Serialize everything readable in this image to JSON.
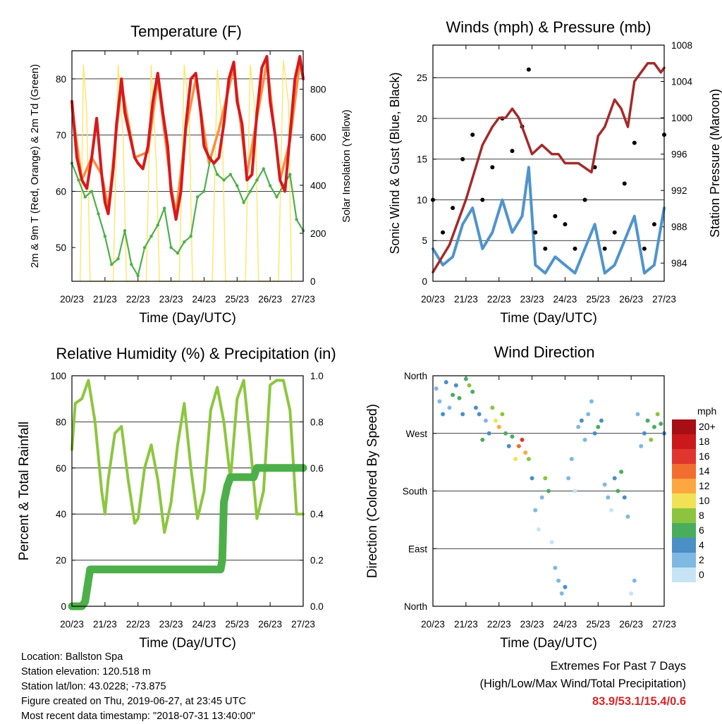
{
  "chart_data": [
    {
      "type": "line",
      "title": "Temperature (F)",
      "xlabel": "Time (Day/UTC)",
      "ylabel": "2m & 9m T (Red, Orange) & 2m Td (Green)",
      "y2label": "Solar Insolation (Yellow)",
      "xticks": [
        "20/23",
        "21/23",
        "22/23",
        "23/23",
        "24/23",
        "25/23",
        "26/23",
        "27/23"
      ],
      "xlim": [
        0,
        7
      ],
      "ylim": [
        44,
        85
      ],
      "yticks": [
        50,
        60,
        70,
        80
      ],
      "y2lim": [
        0,
        960
      ],
      "y2ticks": [
        0,
        200,
        400,
        600,
        800
      ],
      "grid": true,
      "colors": {
        "t2m": "#d7191c",
        "t9m": "#fd8d3c",
        "td2m": "#4daf4a",
        "solar": "#fee566"
      },
      "series": [
        {
          "key": "t2m",
          "x": [
            0,
            0.15,
            0.3,
            0.45,
            0.6,
            0.75,
            0.9,
            1.0,
            1.1,
            1.25,
            1.35,
            1.5,
            1.6,
            1.75,
            1.9,
            2.0,
            2.15,
            2.3,
            2.45,
            2.6,
            2.75,
            2.9,
            3.0,
            3.15,
            3.3,
            3.45,
            3.6,
            3.75,
            3.9,
            4.0,
            4.15,
            4.3,
            4.45,
            4.6,
            4.75,
            4.9,
            5.0,
            5.15,
            5.3,
            5.45,
            5.6,
            5.75,
            5.9,
            6.0,
            6.15,
            6.3,
            6.45,
            6.6,
            6.75,
            6.9,
            7.0
          ],
          "y": [
            76,
            66,
            62,
            60.5,
            66,
            73,
            63,
            58,
            56,
            64,
            72,
            80,
            74,
            70,
            66,
            65,
            64,
            68,
            76,
            81,
            74,
            68,
            60,
            55,
            60,
            72,
            80,
            81,
            74,
            68,
            66,
            65,
            66,
            72,
            80,
            83,
            76,
            72,
            62,
            63,
            74,
            82,
            84,
            76,
            70,
            62,
            60,
            70,
            80,
            84,
            80
          ]
        },
        {
          "key": "t9m",
          "x": [
            0,
            0.3,
            0.6,
            0.9,
            1.1,
            1.5,
            1.9,
            2.3,
            2.6,
            3.0,
            3.15,
            3.45,
            3.75,
            4.15,
            4.45,
            4.9,
            5.3,
            5.6,
            5.9,
            6.3,
            6.6,
            6.9,
            7.0
          ],
          "y": [
            75,
            62,
            66,
            63,
            57,
            79,
            66,
            67,
            80,
            61,
            56,
            71,
            80,
            65,
            71,
            82,
            63,
            73,
            83,
            62,
            69,
            83,
            80
          ]
        },
        {
          "key": "td2m",
          "x": [
            0,
            0.2,
            0.4,
            0.6,
            0.8,
            1.0,
            1.2,
            1.4,
            1.6,
            1.8,
            2.0,
            2.2,
            2.4,
            2.6,
            2.8,
            3.0,
            3.2,
            3.4,
            3.6,
            3.8,
            4.0,
            4.2,
            4.4,
            4.6,
            4.8,
            5.0,
            5.2,
            5.4,
            5.6,
            5.8,
            6.0,
            6.2,
            6.4,
            6.6,
            6.8,
            7.0
          ],
          "y": [
            65,
            62,
            59,
            60,
            56,
            52,
            47,
            48,
            53,
            47,
            45,
            50,
            52,
            54,
            57,
            50,
            49,
            51,
            52,
            59,
            60,
            66,
            63,
            62,
            63,
            61,
            58,
            60,
            62,
            64,
            61,
            59,
            61,
            63,
            55,
            53
          ]
        },
        {
          "key": "solar",
          "x": [
            0.25,
            0.35,
            0.45,
            0.55,
            1.25,
            1.4,
            1.55,
            1.65,
            2.25,
            2.4,
            2.55,
            2.65,
            3.25,
            3.4,
            3.55,
            3.65,
            4.25,
            4.4,
            4.55,
            4.65,
            5.25,
            5.4,
            5.55,
            5.65,
            6.25,
            6.4,
            6.55,
            6.65
          ],
          "y": [
            0,
            900,
            700,
            0,
            0,
            900,
            600,
            0,
            0,
            900,
            500,
            0,
            0,
            900,
            700,
            0,
            0,
            880,
            650,
            0,
            0,
            900,
            700,
            0,
            0,
            920,
            750,
            0
          ]
        }
      ]
    },
    {
      "type": "scatter",
      "title": "Winds (mph) & Pressure (mb)",
      "xlabel": "Time (Day/UTC)",
      "ylabel": "Sonic Wind & Gust (Blue, Black)",
      "y2label": "Station Pressure (Maroon)",
      "xticks": [
        "20/23",
        "21/23",
        "22/23",
        "23/23",
        "24/23",
        "25/23",
        "26/23",
        "27/23"
      ],
      "xlim": [
        0,
        7
      ],
      "ylim": [
        0,
        29
      ],
      "yticks": [
        0,
        5,
        10,
        15,
        20,
        25
      ],
      "y2lim": [
        982.0,
        1008.0
      ],
      "y2ticks": [
        984,
        988,
        992,
        996,
        1000,
        1004,
        1008
      ],
      "grid": true,
      "colors": {
        "wind": "#4f94cd",
        "gust": "#000000",
        "pressure": "#a52a2a"
      },
      "series": [
        {
          "key": "wind",
          "x": [
            0,
            0.3,
            0.6,
            0.9,
            1.2,
            1.5,
            1.8,
            2.1,
            2.4,
            2.7,
            2.9,
            3.1,
            3.4,
            3.7,
            4.0,
            4.3,
            4.6,
            4.9,
            5.2,
            5.5,
            5.8,
            6.1,
            6.4,
            6.7,
            7.0
          ],
          "y": [
            4,
            2,
            3,
            7,
            9,
            4,
            6,
            10,
            6,
            8,
            14,
            2,
            1,
            3,
            2,
            1,
            4,
            7,
            1,
            2,
            5,
            8,
            1,
            2,
            9
          ]
        },
        {
          "key": "gust",
          "x": [
            0,
            0.3,
            0.6,
            0.9,
            1.2,
            1.5,
            1.8,
            2.1,
            2.4,
            2.7,
            2.9,
            3.1,
            3.4,
            3.7,
            4.0,
            4.3,
            4.6,
            4.9,
            5.2,
            5.5,
            5.8,
            6.1,
            6.4,
            6.7,
            7.0
          ],
          "y": [
            10,
            6,
            9,
            15,
            18,
            10,
            14,
            20,
            16,
            19,
            26,
            6,
            4,
            8,
            7,
            4,
            10,
            14,
            4,
            6,
            12,
            17,
            4,
            7,
            18
          ]
        },
        {
          "key": "pressure",
          "x": [
            0,
            0.5,
            1.0,
            1.5,
            1.8,
            2.0,
            2.2,
            2.4,
            2.6,
            2.9,
            3.0,
            3.3,
            3.6,
            3.8,
            4.0,
            4.4,
            4.8,
            5.0,
            5.2,
            5.5,
            5.7,
            5.9,
            6.1,
            6.3,
            6.5,
            6.7,
            6.9,
            7.0
          ],
          "y": [
            983,
            986,
            991,
            997,
            999,
            1000,
            1000,
            1001,
            1000,
            997,
            996,
            997,
            996,
            996,
            995,
            995,
            994,
            998,
            999,
            1002,
            1001,
            999,
            1004,
            1005,
            1006,
            1006,
            1005,
            1005.5
          ]
        }
      ]
    },
    {
      "type": "line",
      "title": "Relative Humidity (%) & Precipitation (in)",
      "xlabel": "Time (Day/UTC)",
      "ylabel": "Percent & Total Rainfall",
      "xticks": [
        "20/23",
        "21/23",
        "22/23",
        "23/23",
        "24/23",
        "25/23",
        "26/23",
        "27/23"
      ],
      "xlim": [
        0,
        7
      ],
      "ylim": [
        0,
        100
      ],
      "yticks": [
        0,
        20,
        40,
        60,
        80,
        100
      ],
      "y2lim": [
        0,
        1
      ],
      "y2ticks": [
        "0.0",
        "0.2",
        "0.4",
        "0.6",
        "0.8",
        "1.0"
      ],
      "grid": true,
      "colors": {
        "rh": "#8dc63f",
        "precip": "#4daf4a"
      },
      "series": [
        {
          "key": "rh",
          "x": [
            0,
            0.1,
            0.3,
            0.5,
            0.7,
            0.9,
            1.0,
            1.1,
            1.3,
            1.5,
            1.7,
            1.9,
            2.0,
            2.2,
            2.4,
            2.6,
            2.8,
            3.0,
            3.2,
            3.4,
            3.6,
            3.8,
            4.0,
            4.2,
            4.4,
            4.6,
            4.8,
            5.0,
            5.2,
            5.4,
            5.6,
            5.8,
            6.0,
            6.2,
            6.4,
            6.6,
            6.8,
            7.0
          ],
          "y": [
            68,
            88,
            90,
            98,
            80,
            50,
            40,
            55,
            75,
            78,
            55,
            36,
            38,
            60,
            70,
            55,
            32,
            45,
            70,
            88,
            60,
            38,
            50,
            85,
            95,
            80,
            55,
            90,
            98,
            70,
            38,
            50,
            96,
            98,
            98,
            85,
            40,
            40
          ]
        },
        {
          "key": "precip",
          "x": [
            0,
            0.3,
            0.4,
            0.55,
            0.6,
            4.5,
            4.55,
            4.6,
            4.7,
            4.8,
            5.0,
            5.5,
            5.6,
            6.0,
            7.0
          ],
          "y": [
            0,
            0,
            0.02,
            0.16,
            0.16,
            0.16,
            0.2,
            0.45,
            0.52,
            0.56,
            0.56,
            0.56,
            0.6,
            0.6,
            0.6
          ]
        }
      ]
    },
    {
      "type": "scatter",
      "title": "Wind Direction",
      "xlabel": "Time (Day/UTC)",
      "ylabel": "Direction (Colored By Speed)",
      "xticks": [
        "20/23",
        "21/23",
        "22/23",
        "23/23",
        "24/23",
        "25/23",
        "26/23",
        "27/23"
      ],
      "xlim": [
        0,
        7
      ],
      "ylim": [
        0,
        360
      ],
      "yticks": [
        "North",
        "East",
        "South",
        "West",
        "North"
      ],
      "grid": true,
      "legend_title": "mph",
      "legend_labels": [
        "20+",
        "18",
        "16",
        "14",
        "12",
        "10",
        "8",
        "6",
        "4",
        "2",
        "0"
      ],
      "legend_colors": [
        "#a50f15",
        "#cb181d",
        "#e0362f",
        "#f26d30",
        "#fca73f",
        "#f2e155",
        "#8cc43f",
        "#4aad5e",
        "#4a8fc6",
        "#7fb8e3",
        "#c6e4f5"
      ],
      "points": [
        {
          "x": 0.1,
          "dir": 340,
          "spd": 3
        },
        {
          "x": 0.2,
          "dir": 320,
          "spd": 2
        },
        {
          "x": 0.3,
          "dir": 300,
          "spd": 4
        },
        {
          "x": 0.4,
          "dir": 350,
          "spd": 5
        },
        {
          "x": 0.5,
          "dir": 310,
          "spd": 3
        },
        {
          "x": 0.6,
          "dir": 330,
          "spd": 6
        },
        {
          "x": 0.7,
          "dir": 345,
          "spd": 4
        },
        {
          "x": 0.8,
          "dir": 325,
          "spd": 7
        },
        {
          "x": 0.9,
          "dir": 300,
          "spd": 5
        },
        {
          "x": 1.0,
          "dir": 355,
          "spd": 6
        },
        {
          "x": 1.1,
          "dir": 345,
          "spd": 8
        },
        {
          "x": 1.2,
          "dir": 335,
          "spd": 7
        },
        {
          "x": 1.3,
          "dir": 310,
          "spd": 4
        },
        {
          "x": 1.4,
          "dir": 300,
          "spd": 5
        },
        {
          "x": 1.5,
          "dir": 260,
          "spd": 6
        },
        {
          "x": 1.6,
          "dir": 290,
          "spd": 3
        },
        {
          "x": 1.7,
          "dir": 270,
          "spd": 5
        },
        {
          "x": 1.8,
          "dir": 310,
          "spd": 8
        },
        {
          "x": 1.9,
          "dir": 290,
          "spd": 10
        },
        {
          "x": 2.0,
          "dir": 280,
          "spd": 12
        },
        {
          "x": 2.1,
          "dir": 300,
          "spd": 9
        },
        {
          "x": 2.2,
          "dir": 270,
          "spd": 6
        },
        {
          "x": 2.3,
          "dir": 250,
          "spd": 5
        },
        {
          "x": 2.4,
          "dir": 265,
          "spd": 7
        },
        {
          "x": 2.5,
          "dir": 230,
          "spd": 11
        },
        {
          "x": 2.6,
          "dir": 250,
          "spd": 14
        },
        {
          "x": 2.7,
          "dir": 260,
          "spd": 16
        },
        {
          "x": 2.8,
          "dir": 240,
          "spd": 13
        },
        {
          "x": 2.9,
          "dir": 230,
          "spd": 9
        },
        {
          "x": 3.0,
          "dir": 200,
          "spd": 4
        },
        {
          "x": 3.1,
          "dir": 150,
          "spd": 2
        },
        {
          "x": 3.2,
          "dir": 120,
          "spd": 1
        },
        {
          "x": 3.3,
          "dir": 170,
          "spd": 3
        },
        {
          "x": 3.4,
          "dir": 200,
          "spd": 8
        },
        {
          "x": 3.5,
          "dir": 180,
          "spd": 7
        },
        {
          "x": 3.6,
          "dir": 100,
          "spd": 1
        },
        {
          "x": 3.7,
          "dir": 60,
          "spd": 2
        },
        {
          "x": 3.8,
          "dir": 40,
          "spd": 3
        },
        {
          "x": 3.9,
          "dir": 20,
          "spd": 2
        },
        {
          "x": 4.0,
          "dir": 30,
          "spd": 4
        },
        {
          "x": 4.1,
          "dir": 200,
          "spd": 3
        },
        {
          "x": 4.2,
          "dir": 230,
          "spd": 2
        },
        {
          "x": 4.3,
          "dir": 180,
          "spd": 1
        },
        {
          "x": 4.4,
          "dir": 280,
          "spd": 3
        },
        {
          "x": 4.5,
          "dir": 290,
          "spd": 4
        },
        {
          "x": 4.6,
          "dir": 260,
          "spd": 2
        },
        {
          "x": 4.7,
          "dir": 300,
          "spd": 3
        },
        {
          "x": 4.8,
          "dir": 320,
          "spd": 2
        },
        {
          "x": 4.9,
          "dir": 270,
          "spd": 5
        },
        {
          "x": 5.0,
          "dir": 280,
          "spd": 6
        },
        {
          "x": 5.1,
          "dir": 290,
          "spd": 4
        },
        {
          "x": 5.2,
          "dir": 190,
          "spd": 3
        },
        {
          "x": 5.3,
          "dir": 170,
          "spd": 2
        },
        {
          "x": 5.4,
          "dir": 150,
          "spd": 1
        },
        {
          "x": 5.5,
          "dir": 200,
          "spd": 5
        },
        {
          "x": 5.6,
          "dir": 180,
          "spd": 7
        },
        {
          "x": 5.7,
          "dir": 210,
          "spd": 6
        },
        {
          "x": 5.8,
          "dir": 170,
          "spd": 4
        },
        {
          "x": 5.9,
          "dir": 140,
          "spd": 3
        },
        {
          "x": 6.0,
          "dir": 20,
          "spd": 1
        },
        {
          "x": 6.1,
          "dir": 40,
          "spd": 2
        },
        {
          "x": 6.2,
          "dir": 300,
          "spd": 3
        },
        {
          "x": 6.3,
          "dir": 250,
          "spd": 2
        },
        {
          "x": 6.4,
          "dir": 270,
          "spd": 4
        },
        {
          "x": 6.5,
          "dir": 290,
          "spd": 6
        },
        {
          "x": 6.6,
          "dir": 260,
          "spd": 8
        },
        {
          "x": 6.7,
          "dir": 280,
          "spd": 7
        },
        {
          "x": 6.8,
          "dir": 300,
          "spd": 9
        },
        {
          "x": 6.9,
          "dir": 285,
          "spd": 6
        },
        {
          "x": 7.0,
          "dir": 270,
          "spd": 5
        }
      ]
    }
  ],
  "footer": {
    "location": "Location: Ballston Spa",
    "elevation": "Station elevation: 120.518 m",
    "latlon": "Station lat/lon: 43.0228; -73.875",
    "created": "Figure created on Thu, 2019-06-27, at 23:45 UTC",
    "recent": "Most recent data timestamp: \"2018-07-31 13:40:00\""
  },
  "extremes": {
    "title": "Extremes For Past 7 Days",
    "subtitle": "(High/Low/Max Wind/Total Precipitation)",
    "values": "83.9/53.1/15.4/0.6"
  }
}
